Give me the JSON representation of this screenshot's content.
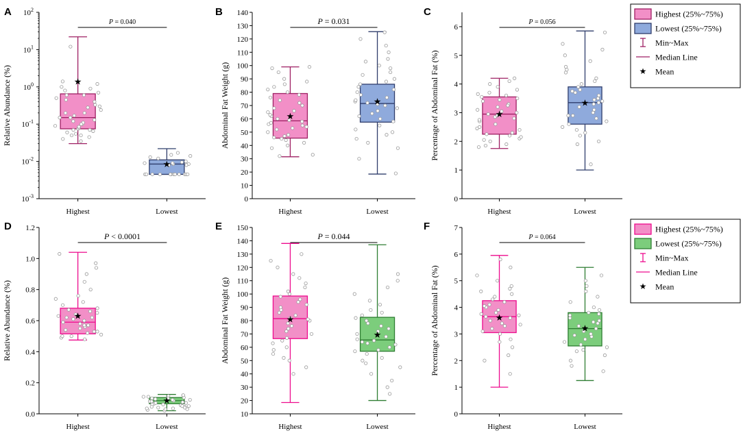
{
  "figure": {
    "colors": {
      "highest_fill": "#f28fc7",
      "highest_stroke": "#ed0a8d",
      "top_highest_stroke": "#9e1f63",
      "lowest_blue_fill": "#8faadc",
      "lowest_blue_stroke": "#2f3d6b",
      "lowest_green_fill": "#7ccd7c",
      "lowest_green_stroke": "#2e7d32",
      "point_fill": "#ffffff",
      "mean": "#000000"
    },
    "legends": [
      {
        "id": "top",
        "entries": [
          {
            "kind": "box",
            "label": "Highest (25%~75%)",
            "fill": "#f28fc7",
            "stroke": "#9e1f63"
          },
          {
            "kind": "box",
            "label": "Lowest (25%~75%)",
            "fill": "#8faadc",
            "stroke": "#2f3d6b"
          },
          {
            "kind": "range",
            "label": "Min~Max",
            "stroke": "#9e1f63"
          },
          {
            "kind": "median",
            "label": "Median Line",
            "stroke": "#9e1f63"
          },
          {
            "kind": "mean",
            "label": "Mean"
          }
        ]
      },
      {
        "id": "bottom",
        "entries": [
          {
            "kind": "box",
            "label": "Highest (25%~75%)",
            "fill": "#f28fc7",
            "stroke": "#ed0a8d"
          },
          {
            "kind": "box",
            "label": "Lowest (25%~75%)",
            "fill": "#7ccd7c",
            "stroke": "#2e7d32"
          },
          {
            "kind": "range",
            "label": "Min~Max",
            "stroke": "#ed0a8d"
          },
          {
            "kind": "median",
            "label": "Median Line",
            "stroke": "#ed0a8d"
          },
          {
            "kind": "mean",
            "label": "Mean"
          }
        ]
      }
    ]
  },
  "chart_data": [
    {
      "panel": "A",
      "type": "box",
      "scale": "log",
      "ylabel": "Relative Abundance (%)",
      "ylim": [
        0.001,
        100
      ],
      "ticks": [
        0.001,
        0.01,
        0.1,
        1,
        10,
        100
      ],
      "tick_labels": [
        {
          "base": "10",
          "exp": "-3"
        },
        {
          "base": "10",
          "exp": "-2"
        },
        {
          "base": "10",
          "exp": "-1"
        },
        {
          "base": "10",
          "exp": "0"
        },
        {
          "base": "10",
          "exp": "1"
        },
        {
          "base": "10",
          "exp": "2"
        }
      ],
      "categories": [
        "Highest",
        "Lowest"
      ],
      "p_value": {
        "prefix": "P",
        "text": " = 0.040"
      },
      "p_style": "small",
      "series": [
        {
          "name": "Highest",
          "min": 0.03,
          "q1": 0.075,
          "median": 0.15,
          "q3": 0.65,
          "max": 22,
          "mean": 1.4,
          "fill": "#f28fc7",
          "stroke": "#9e1f63",
          "points": [
            0.04,
            0.045,
            0.05,
            0.055,
            0.06,
            0.065,
            0.07,
            0.075,
            0.08,
            0.085,
            0.09,
            0.1,
            0.11,
            0.12,
            0.13,
            0.15,
            0.17,
            0.2,
            0.24,
            0.28,
            0.33,
            0.4,
            0.5,
            0.6,
            0.7,
            0.8,
            0.9,
            1.0,
            1.2,
            1.4,
            12,
            0.035,
            0.05,
            0.07,
            0.1,
            0.15,
            0.2,
            0.3,
            0.45,
            0.6
          ]
        },
        {
          "name": "Lowest",
          "min": 0.0045,
          "q1": 0.0045,
          "median": 0.0085,
          "q3": 0.011,
          "max": 0.022,
          "mean": 0.0085,
          "fill": "#8faadc",
          "stroke": "#2f3d6b",
          "points": [
            0.0045,
            0.0045,
            0.0045,
            0.0045,
            0.0045,
            0.0045,
            0.0045,
            0.0045,
            0.0045,
            0.0045,
            0.0045,
            0.0045,
            0.008,
            0.0085,
            0.009,
            0.0085,
            0.008,
            0.009,
            0.0095,
            0.01,
            0.012,
            0.013,
            0.014,
            0.015,
            0.017
          ]
        }
      ]
    },
    {
      "panel": "B",
      "type": "box",
      "scale": "linear",
      "ylabel": "Abdominal Fat Weight (g)",
      "ylim": [
        0,
        140
      ],
      "ticks": [
        0,
        10,
        20,
        30,
        40,
        50,
        60,
        70,
        80,
        90,
        100,
        110,
        120,
        130,
        140
      ],
      "tick_labels": [
        "0",
        "10",
        "20",
        "30",
        "40",
        "50",
        "60",
        "70",
        "80",
        "90",
        "100",
        "110",
        "120",
        "130",
        "140"
      ],
      "categories": [
        "Highest",
        "Lowest"
      ],
      "p_value": {
        "prefix": "P",
        "text": " = 0.031"
      },
      "p_style": "large",
      "series": [
        {
          "name": "Highest",
          "min": 31.5,
          "q1": 45.5,
          "median": 58.5,
          "q3": 79,
          "max": 99,
          "mean": 62,
          "fill": "#f28fc7",
          "stroke": "#9e1f63",
          "points": [
            32,
            33,
            38,
            40,
            42,
            44,
            45,
            46,
            47,
            48,
            50,
            52,
            53,
            54,
            55,
            56,
            57,
            58,
            59,
            60,
            62,
            63,
            65,
            66,
            68,
            70,
            72,
            74,
            76,
            78,
            80,
            82,
            84,
            86,
            88,
            90,
            95,
            98,
            99
          ]
        },
        {
          "name": "Lowest",
          "min": 18.5,
          "q1": 57.5,
          "median": 71.5,
          "q3": 86,
          "max": 125.5,
          "mean": 73,
          "fill": "#8faadc",
          "stroke": "#2f3d6b",
          "points": [
            19,
            30,
            38,
            42,
            45,
            48,
            50,
            52,
            55,
            58,
            60,
            62,
            64,
            66,
            68,
            70,
            71,
            72,
            73,
            74,
            76,
            78,
            80,
            82,
            84,
            86,
            88,
            90,
            93,
            95,
            98,
            100,
            103,
            105,
            110,
            115,
            120,
            125
          ]
        }
      ]
    },
    {
      "panel": "C",
      "type": "box",
      "scale": "linear",
      "ylabel": "Percentage of Abdominal Fat (%)",
      "ylim": [
        0,
        6.5
      ],
      "ticks": [
        0,
        1,
        2,
        3,
        4,
        5,
        6
      ],
      "tick_labels": [
        "0",
        "1",
        "2",
        "3",
        "4",
        "5",
        "6"
      ],
      "categories": [
        "Highest",
        "Lowest"
      ],
      "p_value": {
        "prefix": "P",
        "text": " = 0.056"
      },
      "p_style": "small",
      "series": [
        {
          "name": "Highest",
          "min": 1.75,
          "q1": 2.25,
          "median": 2.95,
          "q3": 3.55,
          "max": 4.2,
          "mean": 2.95,
          "fill": "#f28fc7",
          "stroke": "#9e1f63",
          "points": [
            1.8,
            1.9,
            2.0,
            2.05,
            2.1,
            2.2,
            2.25,
            2.3,
            2.4,
            2.5,
            2.6,
            2.7,
            2.8,
            2.85,
            2.9,
            2.95,
            3.0,
            3.05,
            3.1,
            3.2,
            3.3,
            3.4,
            3.5,
            3.55,
            3.6,
            3.7,
            3.8,
            3.9,
            4.0,
            4.1,
            4.2,
            1.85,
            2.15,
            2.45,
            2.75,
            3.25,
            3.45,
            3.65
          ]
        },
        {
          "name": "Lowest",
          "min": 1.0,
          "q1": 2.6,
          "median": 3.35,
          "q3": 3.9,
          "max": 5.85,
          "mean": 3.35,
          "fill": "#8faadc",
          "stroke": "#2f3d6b",
          "points": [
            1.2,
            1.9,
            2.0,
            2.2,
            2.4,
            2.5,
            2.6,
            2.7,
            2.8,
            2.9,
            3.0,
            3.1,
            3.2,
            3.3,
            3.35,
            3.4,
            3.5,
            3.6,
            3.7,
            3.8,
            3.9,
            4.0,
            4.1,
            4.2,
            4.4,
            4.5,
            4.6,
            4.8,
            5.0,
            5.2,
            5.4,
            5.8,
            2.3,
            2.9,
            3.45,
            3.75
          ]
        }
      ]
    },
    {
      "panel": "D",
      "type": "box",
      "scale": "linear",
      "ylabel": "Relative Abundance (%)",
      "ylim": [
        0,
        1.2
      ],
      "ticks": [
        0,
        0.2,
        0.4,
        0.6,
        0.8,
        1.0,
        1.2
      ],
      "tick_labels": [
        "0.0",
        "0.2",
        "0.4",
        "0.6",
        "0.8",
        "1.0",
        "1.2"
      ],
      "categories": [
        "Highest",
        "Lowest"
      ],
      "p_value": {
        "prefix": "P",
        "text": " < 0.0001"
      },
      "p_style": "large",
      "series": [
        {
          "name": "Highest",
          "min": 0.475,
          "q1": 0.515,
          "median": 0.59,
          "q3": 0.68,
          "max": 1.04,
          "mean": 0.63,
          "fill": "#f28fc7",
          "stroke": "#ed0a8d",
          "points": [
            0.48,
            0.49,
            0.5,
            0.51,
            0.52,
            0.53,
            0.54,
            0.55,
            0.56,
            0.57,
            0.58,
            0.59,
            0.6,
            0.61,
            0.62,
            0.63,
            0.64,
            0.65,
            0.66,
            0.67,
            0.68,
            0.7,
            0.72,
            0.74,
            0.76,
            0.8,
            0.85,
            0.9,
            0.94,
            0.97,
            1.03,
            0.5,
            0.53,
            0.57,
            0.62
          ]
        },
        {
          "name": "Lowest",
          "min": 0.02,
          "q1": 0.065,
          "median": 0.085,
          "q3": 0.105,
          "max": 0.125,
          "mean": 0.085,
          "fill": "#7ccd7c",
          "stroke": "#2e7d32",
          "points": [
            0.02,
            0.025,
            0.03,
            0.035,
            0.04,
            0.045,
            0.05,
            0.055,
            0.06,
            0.065,
            0.07,
            0.075,
            0.08,
            0.085,
            0.09,
            0.095,
            0.1,
            0.105,
            0.11,
            0.115,
            0.12,
            0.03,
            0.04,
            0.05,
            0.06,
            0.07,
            0.08,
            0.09,
            0.1,
            0.11,
            0.12,
            0.035,
            0.045
          ]
        }
      ]
    },
    {
      "panel": "E",
      "type": "box",
      "scale": "linear",
      "ylabel": "Abdominal Fat Weight (g)",
      "ylim": [
        10,
        150
      ],
      "ticks": [
        10,
        20,
        30,
        40,
        50,
        60,
        70,
        80,
        90,
        100,
        110,
        120,
        130,
        140,
        150
      ],
      "tick_labels": [
        "10",
        "20",
        "30",
        "40",
        "50",
        "60",
        "70",
        "80",
        "90",
        "100",
        "110",
        "120",
        "130",
        "140",
        "150"
      ],
      "categories": [
        "Highest",
        "Lowest"
      ],
      "p_value": {
        "prefix": "P",
        "text": " = 0.044"
      },
      "p_style": "large",
      "series": [
        {
          "name": "Highest",
          "min": 18.5,
          "q1": 66.5,
          "median": 81.5,
          "q3": 98.5,
          "max": 138,
          "mean": 81,
          "fill": "#f28fc7",
          "stroke": "#ed0a8d",
          "points": [
            40,
            45,
            50,
            52,
            55,
            58,
            60,
            63,
            65,
            67,
            70,
            72,
            74,
            76,
            78,
            80,
            81,
            82,
            84,
            86,
            88,
            90,
            92,
            94,
            96,
            98,
            100,
            102,
            105,
            108,
            112,
            115,
            120,
            125,
            130
          ]
        },
        {
          "name": "Lowest",
          "min": 20,
          "q1": 57,
          "median": 65.5,
          "q3": 82.5,
          "max": 137,
          "mean": 69.5,
          "fill": "#7ccd7c",
          "stroke": "#2e7d32",
          "points": [
            25,
            30,
            35,
            40,
            45,
            48,
            50,
            52,
            55,
            57,
            58,
            60,
            62,
            63,
            64,
            65,
            66,
            68,
            70,
            72,
            74,
            76,
            78,
            80,
            82,
            84,
            86,
            88,
            92,
            95,
            100,
            105,
            110,
            115
          ]
        }
      ]
    },
    {
      "panel": "F",
      "type": "box",
      "scale": "linear",
      "ylabel": "Percentage of Abdominal Fat (%)",
      "ylim": [
        0,
        7
      ],
      "ticks": [
        0,
        1,
        2,
        3,
        4,
        5,
        6,
        7
      ],
      "tick_labels": [
        "0",
        "1",
        "2",
        "3",
        "4",
        "5",
        "6",
        "7"
      ],
      "categories": [
        "Highest",
        "Lowest"
      ],
      "p_value": {
        "prefix": "P",
        "text": " = 0.064"
      },
      "p_style": "small",
      "series": [
        {
          "name": "Highest",
          "min": 1.0,
          "q1": 3.05,
          "median": 3.65,
          "q3": 4.25,
          "max": 5.95,
          "mean": 3.62,
          "fill": "#f28fc7",
          "stroke": "#ed0a8d",
          "points": [
            1.5,
            2.0,
            2.2,
            2.5,
            2.7,
            2.8,
            3.0,
            3.1,
            3.2,
            3.3,
            3.4,
            3.5,
            3.6,
            3.65,
            3.7,
            3.8,
            3.9,
            4.0,
            4.1,
            4.2,
            4.3,
            4.4,
            4.5,
            4.6,
            4.7,
            4.8,
            5.0,
            5.2,
            5.5,
            5.8,
            3.35,
            3.75,
            4.05
          ]
        },
        {
          "name": "Lowest",
          "min": 1.25,
          "q1": 2.55,
          "median": 3.2,
          "q3": 3.8,
          "max": 5.5,
          "mean": 3.22,
          "fill": "#7ccd7c",
          "stroke": "#2e7d32",
          "points": [
            1.6,
            1.8,
            2.0,
            2.2,
            2.4,
            2.5,
            2.6,
            2.7,
            2.8,
            2.9,
            3.0,
            3.1,
            3.2,
            3.3,
            3.4,
            3.5,
            3.6,
            3.7,
            3.8,
            3.9,
            4.0,
            4.2,
            4.4,
            4.6,
            4.8,
            5.0,
            5.2,
            2.35,
            2.95,
            3.45,
            3.75
          ]
        }
      ]
    }
  ]
}
